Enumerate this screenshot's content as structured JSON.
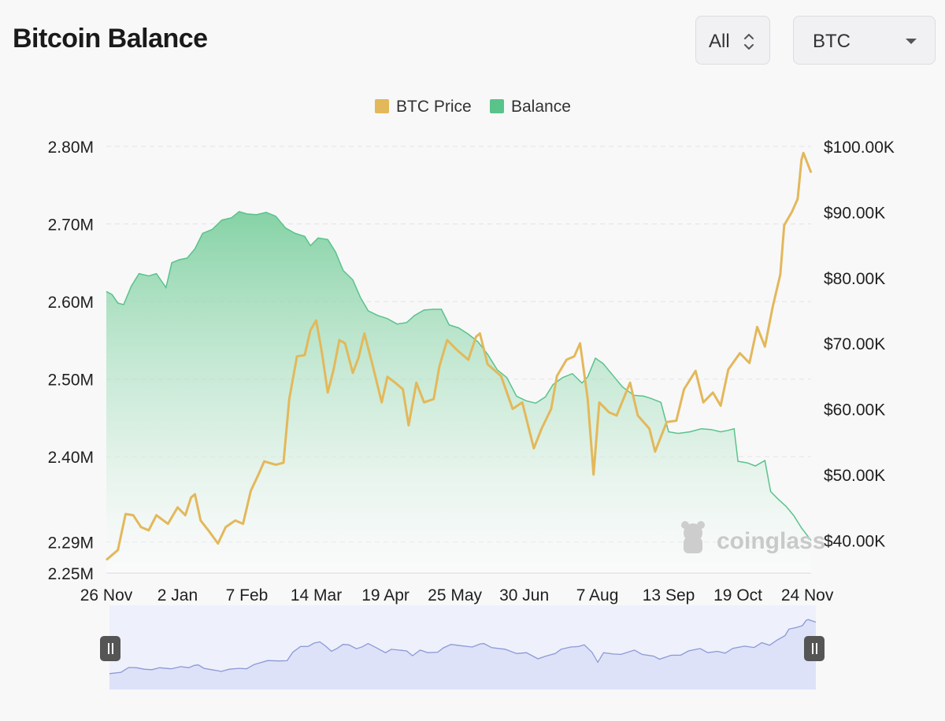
{
  "page": {
    "title": "Bitcoin Balance",
    "range_select": {
      "value": "All"
    },
    "coin_select": {
      "value": "BTC"
    }
  },
  "watermark": "coinglass",
  "colors": {
    "price": "#e3b85a",
    "balance_line": "#59c38a",
    "balance_fill_top": "#7fd0a1",
    "navigator_line": "#8c9ad6",
    "navigator_fill": "#dde2f8"
  },
  "chart_data": {
    "type": "area",
    "legend": {
      "placement": "top-center",
      "items": [
        "BTC Price",
        "Balance"
      ]
    },
    "grid": true,
    "x": {
      "type": "date",
      "start": "2023-11-26",
      "end": "2024-11-26",
      "tick_labels": [
        "26 Nov",
        "2 Jan",
        "7 Feb",
        "14 Mar",
        "19 Apr",
        "25 May",
        "30 Jun",
        "7 Aug",
        "13 Sep",
        "19 Oct",
        "24 Nov"
      ],
      "tick_dates": [
        "2023-11-26",
        "2024-01-02",
        "2024-02-07",
        "2024-03-14",
        "2024-04-19",
        "2024-05-25",
        "2024-06-30",
        "2024-08-07",
        "2024-09-13",
        "2024-10-19",
        "2024-11-24"
      ]
    },
    "y_left": {
      "range": [
        2250000,
        2800000
      ],
      "ticks": [
        2290000,
        2400000,
        2500000,
        2600000,
        2700000,
        2800000
      ],
      "tick_labels": [
        "2.29M",
        "2.40M",
        "2.50M",
        "2.60M",
        "2.70M",
        "2.80M"
      ],
      "min_label": "2.25M"
    },
    "y_right": {
      "range": [
        35000,
        100000
      ],
      "ticks": [
        40000,
        50000,
        60000,
        70000,
        80000,
        90000,
        100000
      ],
      "tick_labels": [
        "$40.00K",
        "$50.00K",
        "$60.00K",
        "$70.00K",
        "$80.00K",
        "$90.00K",
        "$100.00K"
      ]
    },
    "series": [
      {
        "name": "BTC Price",
        "axis": "right",
        "style": "line",
        "points": [
          [
            "2023-11-26",
            37000
          ],
          [
            "2023-12-02",
            38500
          ],
          [
            "2023-12-06",
            44000
          ],
          [
            "2023-12-10",
            43800
          ],
          [
            "2023-12-14",
            42000
          ],
          [
            "2023-12-18",
            41500
          ],
          [
            "2023-12-22",
            43800
          ],
          [
            "2023-12-28",
            42500
          ],
          [
            "2024-01-02",
            45000
          ],
          [
            "2024-01-06",
            43800
          ],
          [
            "2024-01-09",
            46500
          ],
          [
            "2024-01-11",
            47000
          ],
          [
            "2024-01-14",
            43000
          ],
          [
            "2024-01-18",
            41500
          ],
          [
            "2024-01-23",
            39500
          ],
          [
            "2024-01-27",
            42000
          ],
          [
            "2024-02-01",
            43000
          ],
          [
            "2024-02-05",
            42500
          ],
          [
            "2024-02-09",
            47500
          ],
          [
            "2024-02-13",
            50000
          ],
          [
            "2024-02-16",
            52000
          ],
          [
            "2024-02-22",
            51500
          ],
          [
            "2024-02-26",
            51800
          ],
          [
            "2024-02-29",
            61500
          ],
          [
            "2024-03-04",
            68000
          ],
          [
            "2024-03-08",
            68200
          ],
          [
            "2024-03-11",
            72000
          ],
          [
            "2024-03-14",
            73500
          ],
          [
            "2024-03-17",
            68500
          ],
          [
            "2024-03-20",
            62500
          ],
          [
            "2024-03-23",
            66000
          ],
          [
            "2024-03-26",
            70500
          ],
          [
            "2024-03-29",
            70000
          ],
          [
            "2024-04-02",
            65500
          ],
          [
            "2024-04-05",
            67800
          ],
          [
            "2024-04-08",
            71500
          ],
          [
            "2024-04-12",
            67000
          ],
          [
            "2024-04-17",
            61000
          ],
          [
            "2024-04-20",
            64900
          ],
          [
            "2024-04-24",
            64000
          ],
          [
            "2024-04-28",
            63000
          ],
          [
            "2024-05-01",
            57500
          ],
          [
            "2024-05-05",
            64000
          ],
          [
            "2024-05-09",
            61000
          ],
          [
            "2024-05-14",
            61500
          ],
          [
            "2024-05-17",
            66500
          ],
          [
            "2024-05-21",
            70500
          ],
          [
            "2024-05-26",
            69000
          ],
          [
            "2024-06-01",
            67500
          ],
          [
            "2024-06-05",
            71000
          ],
          [
            "2024-06-07",
            71500
          ],
          [
            "2024-06-11",
            66800
          ],
          [
            "2024-06-18",
            65000
          ],
          [
            "2024-06-24",
            60000
          ],
          [
            "2024-06-29",
            61000
          ],
          [
            "2024-07-05",
            54000
          ],
          [
            "2024-07-09",
            57000
          ],
          [
            "2024-07-14",
            60000
          ],
          [
            "2024-07-17",
            65000
          ],
          [
            "2024-07-22",
            67500
          ],
          [
            "2024-07-26",
            68000
          ],
          [
            "2024-07-29",
            70000
          ],
          [
            "2024-08-02",
            61500
          ],
          [
            "2024-08-05",
            50000
          ],
          [
            "2024-08-08",
            61000
          ],
          [
            "2024-08-13",
            59500
          ],
          [
            "2024-08-17",
            59000
          ],
          [
            "2024-08-24",
            64000
          ],
          [
            "2024-08-28",
            59000
          ],
          [
            "2024-09-03",
            57000
          ],
          [
            "2024-09-06",
            53500
          ],
          [
            "2024-09-12",
            58000
          ],
          [
            "2024-09-17",
            58200
          ],
          [
            "2024-09-21",
            63000
          ],
          [
            "2024-09-27",
            65800
          ],
          [
            "2024-10-01",
            61000
          ],
          [
            "2024-10-06",
            62500
          ],
          [
            "2024-10-10",
            60500
          ],
          [
            "2024-10-14",
            66000
          ],
          [
            "2024-10-20",
            68500
          ],
          [
            "2024-10-25",
            67000
          ],
          [
            "2024-10-29",
            72500
          ],
          [
            "2024-11-02",
            69500
          ],
          [
            "2024-11-06",
            75500
          ],
          [
            "2024-11-10",
            80500
          ],
          [
            "2024-11-12",
            88000
          ],
          [
            "2024-11-16",
            90000
          ],
          [
            "2024-11-19",
            92000
          ],
          [
            "2024-11-21",
            98000
          ],
          [
            "2024-11-22",
            99000
          ],
          [
            "2024-11-24",
            97500
          ],
          [
            "2024-11-26",
            96000
          ]
        ]
      },
      {
        "name": "Balance",
        "axis": "left",
        "style": "area",
        "points": [
          [
            "2023-11-26",
            2613000
          ],
          [
            "2023-11-29",
            2609000
          ],
          [
            "2023-12-02",
            2598000
          ],
          [
            "2023-12-05",
            2596000
          ],
          [
            "2023-12-09",
            2620000
          ],
          [
            "2023-12-13",
            2636000
          ],
          [
            "2023-12-18",
            2633000
          ],
          [
            "2023-12-22",
            2636000
          ],
          [
            "2023-12-27",
            2618000
          ],
          [
            "2023-12-30",
            2650000
          ],
          [
            "2024-01-03",
            2654000
          ],
          [
            "2024-01-07",
            2656000
          ],
          [
            "2024-01-11",
            2668000
          ],
          [
            "2024-01-15",
            2688000
          ],
          [
            "2024-01-20",
            2693000
          ],
          [
            "2024-01-25",
            2705000
          ],
          [
            "2024-01-30",
            2708000
          ],
          [
            "2024-02-03",
            2716000
          ],
          [
            "2024-02-07",
            2713000
          ],
          [
            "2024-02-12",
            2712000
          ],
          [
            "2024-02-17",
            2715000
          ],
          [
            "2024-02-22",
            2710000
          ],
          [
            "2024-02-27",
            2695000
          ],
          [
            "2024-03-03",
            2688000
          ],
          [
            "2024-03-08",
            2684000
          ],
          [
            "2024-03-11",
            2672000
          ],
          [
            "2024-03-15",
            2682000
          ],
          [
            "2024-03-20",
            2680000
          ],
          [
            "2024-03-24",
            2664000
          ],
          [
            "2024-03-28",
            2640000
          ],
          [
            "2024-04-02",
            2628000
          ],
          [
            "2024-04-06",
            2605000
          ],
          [
            "2024-04-10",
            2588000
          ],
          [
            "2024-04-15",
            2582000
          ],
          [
            "2024-04-20",
            2578000
          ],
          [
            "2024-04-25",
            2571000
          ],
          [
            "2024-04-30",
            2573000
          ],
          [
            "2024-05-04",
            2582000
          ],
          [
            "2024-05-09",
            2589000
          ],
          [
            "2024-05-14",
            2590000
          ],
          [
            "2024-05-18",
            2590000
          ],
          [
            "2024-05-22",
            2570000
          ],
          [
            "2024-05-27",
            2566000
          ],
          [
            "2024-06-01",
            2558000
          ],
          [
            "2024-06-06",
            2548000
          ],
          [
            "2024-06-11",
            2532000
          ],
          [
            "2024-06-16",
            2512000
          ],
          [
            "2024-06-21",
            2502000
          ],
          [
            "2024-06-26",
            2478000
          ],
          [
            "2024-07-01",
            2472000
          ],
          [
            "2024-07-06",
            2469000
          ],
          [
            "2024-07-11",
            2477000
          ],
          [
            "2024-07-15",
            2493000
          ],
          [
            "2024-07-20",
            2502000
          ],
          [
            "2024-07-25",
            2507000
          ],
          [
            "2024-07-30",
            2495000
          ],
          [
            "2024-08-02",
            2503000
          ],
          [
            "2024-08-06",
            2527000
          ],
          [
            "2024-08-10",
            2520000
          ],
          [
            "2024-08-15",
            2505000
          ],
          [
            "2024-08-20",
            2490000
          ],
          [
            "2024-08-26",
            2479000
          ],
          [
            "2024-08-31",
            2478000
          ],
          [
            "2024-09-04",
            2475000
          ],
          [
            "2024-09-09",
            2470000
          ],
          [
            "2024-09-13",
            2432000
          ],
          [
            "2024-09-18",
            2430000
          ],
          [
            "2024-09-24",
            2432000
          ],
          [
            "2024-09-30",
            2436000
          ],
          [
            "2024-10-05",
            2435000
          ],
          [
            "2024-10-10",
            2432000
          ],
          [
            "2024-10-14",
            2434000
          ],
          [
            "2024-10-17",
            2436000
          ],
          [
            "2024-10-19",
            2394000
          ],
          [
            "2024-10-24",
            2392000
          ],
          [
            "2024-10-28",
            2388000
          ],
          [
            "2024-11-02",
            2395000
          ],
          [
            "2024-11-05",
            2355000
          ],
          [
            "2024-11-09",
            2345000
          ],
          [
            "2024-11-13",
            2336000
          ],
          [
            "2024-11-17",
            2324000
          ],
          [
            "2024-11-21",
            2308000
          ],
          [
            "2024-11-26",
            2292000
          ]
        ]
      }
    ]
  }
}
